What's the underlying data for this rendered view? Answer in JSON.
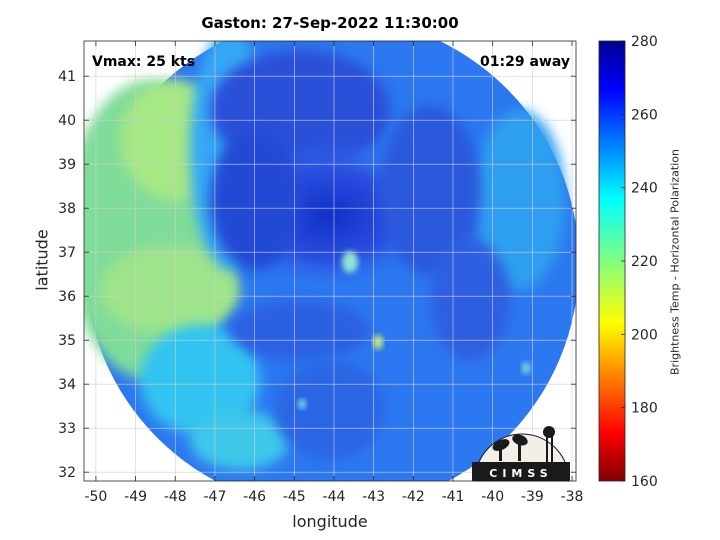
{
  "title": "Gaston: 27-Sep-2022 11:30:00",
  "vmax_label": "Vmax: 25 kts",
  "time_away_label": "01:29 away",
  "xlabel": "longitude",
  "ylabel": "latitude",
  "colorbar_label": "Brightness Temp - Horizontal Polarization",
  "logo_text": "CIMSS",
  "chart_data": {
    "type": "heatmap",
    "xlim": [
      -50.3,
      -37.9
    ],
    "ylim": [
      31.8,
      41.8
    ],
    "x_ticks": [
      -50,
      -49,
      -48,
      -47,
      -46,
      -45,
      -44,
      -43,
      -42,
      -41,
      -40,
      -39,
      -38
    ],
    "y_ticks": [
      32,
      33,
      34,
      35,
      36,
      37,
      38,
      39,
      40,
      41
    ],
    "colorbar": {
      "range": [
        160,
        280
      ],
      "ticks": [
        160,
        180,
        200,
        220,
        240,
        260,
        280
      ],
      "colormap": "jet"
    },
    "swath_center": {
      "lon": -44.05,
      "lat": 36.75
    },
    "storm_center": {
      "lon": -44.15,
      "lat": 36.95
    },
    "grid": true
  }
}
